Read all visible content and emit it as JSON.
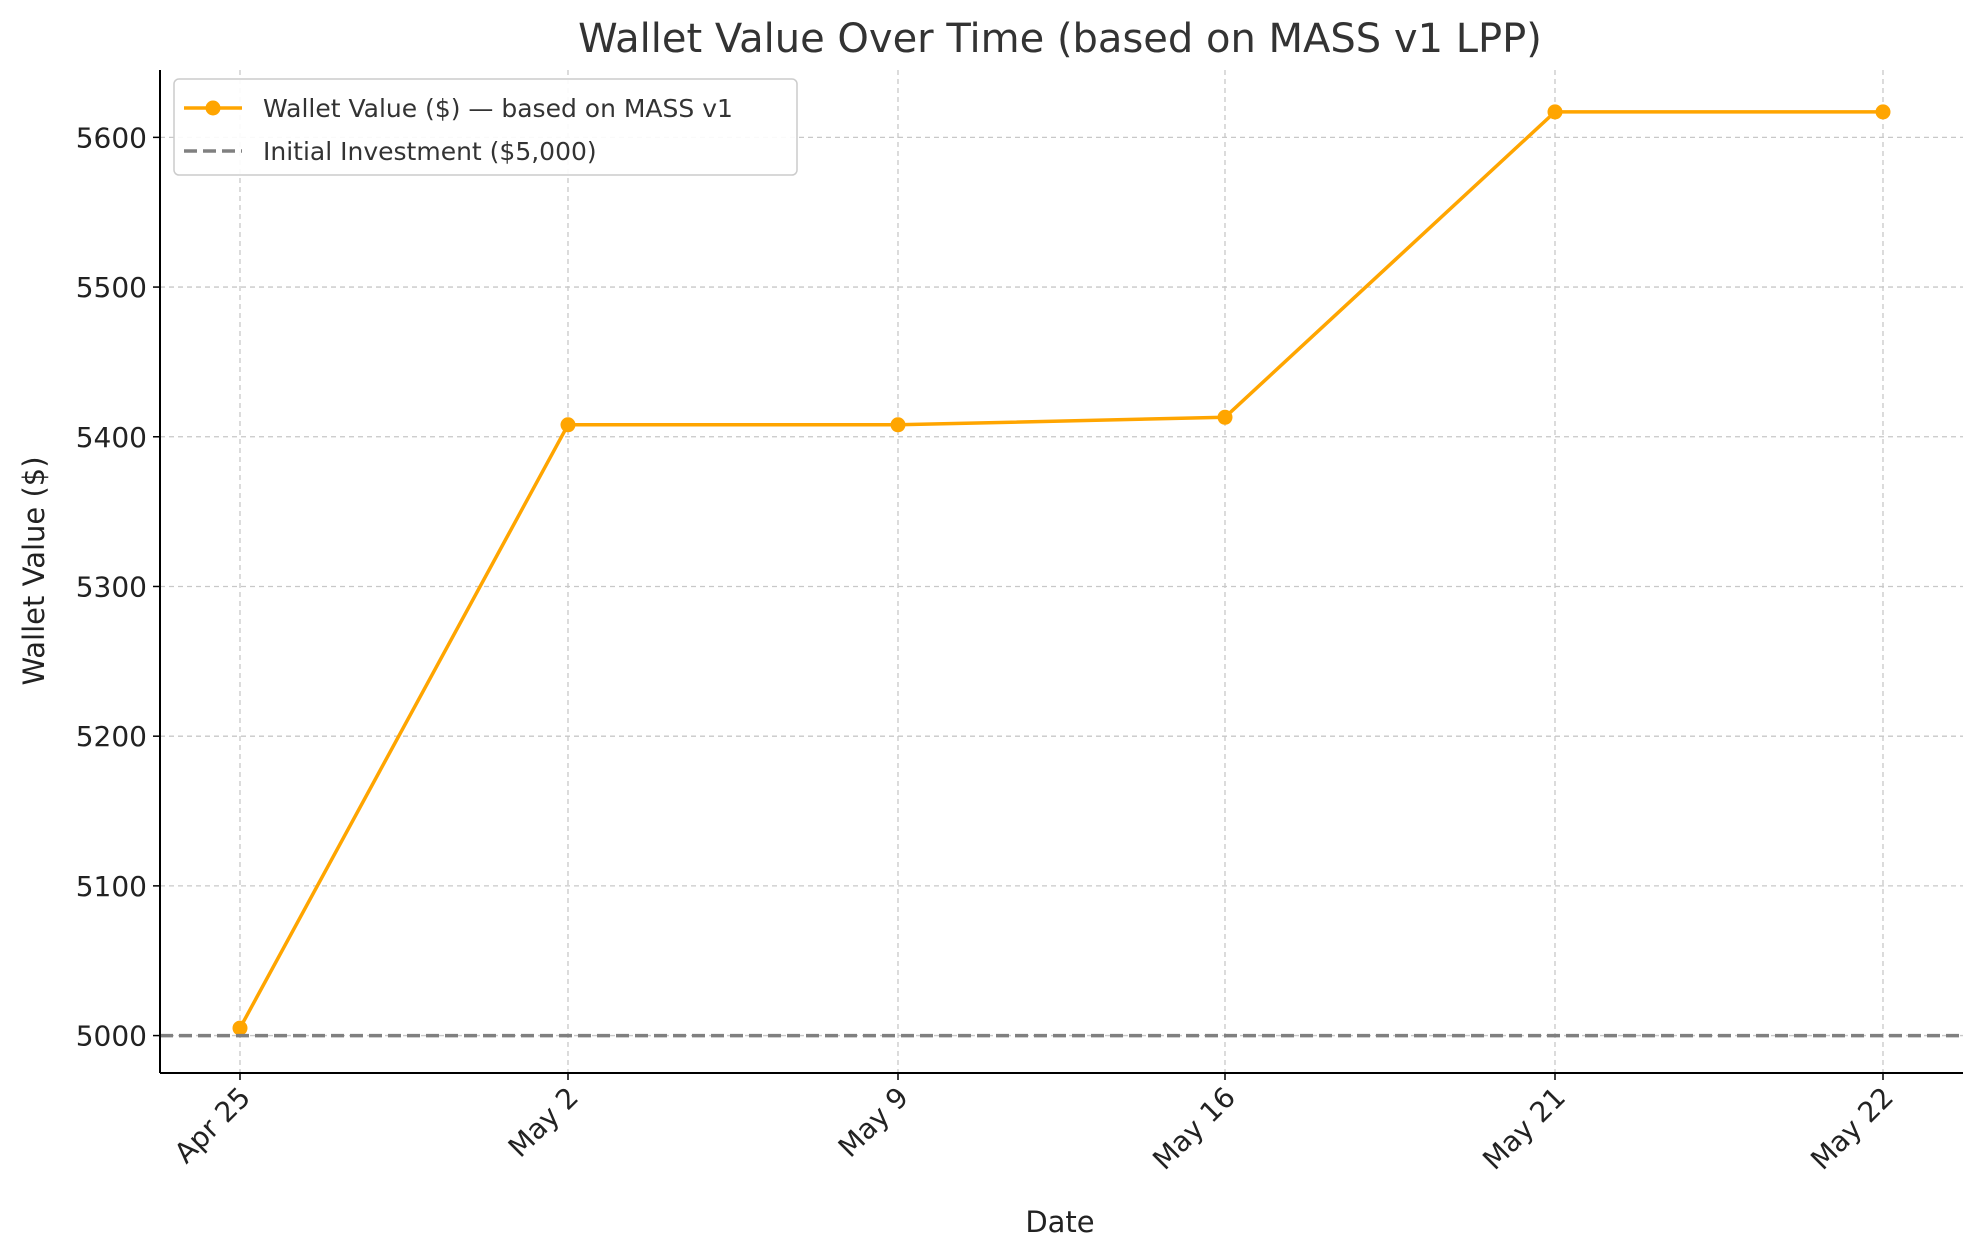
{
  "chart_data": {
    "type": "line",
    "title": "Wallet Value Over Time (based on MASS v1 LPP)",
    "xlabel": "Date",
    "ylabel": "Wallet Value ($)",
    "categories": [
      "Apr 25",
      "May 2",
      "May 9",
      "May 16",
      "May 21",
      "May 22"
    ],
    "series": [
      {
        "name": "Wallet Value ($) — based on MASS v1",
        "values": [
          5005,
          5408,
          5408,
          5413,
          5617,
          5617
        ],
        "color": "#FFA500",
        "style": "solid",
        "marker": "circle"
      },
      {
        "name": "Initial Investment ($5,000)",
        "values": [
          5000,
          5000,
          5000,
          5000,
          5000,
          5000
        ],
        "color": "#808080",
        "style": "dashed",
        "marker": "none"
      }
    ],
    "yticks": [
      5000,
      5100,
      5200,
      5300,
      5400,
      5500,
      5600
    ],
    "ylim": [
      4975,
      5645
    ],
    "grid": true,
    "legend_position": "top-left"
  }
}
